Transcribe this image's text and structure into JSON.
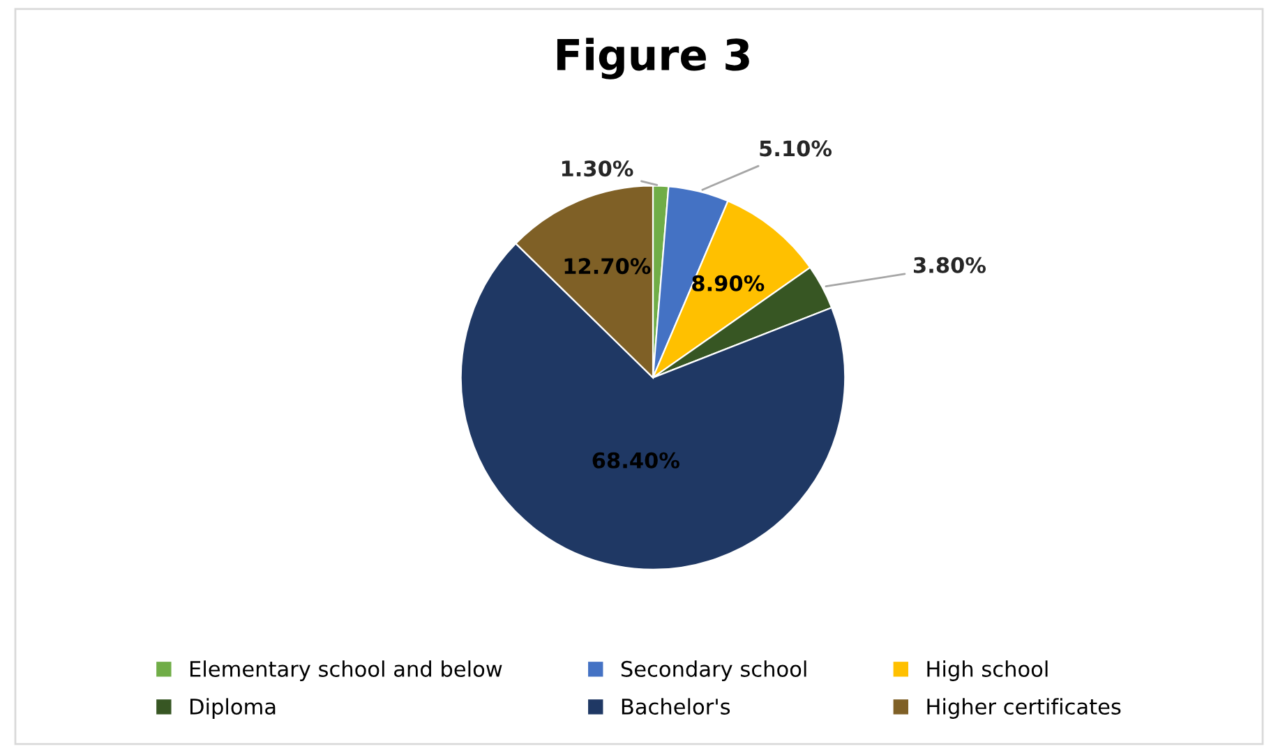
{
  "chart_data": {
    "type": "pie",
    "title": "Figure 3",
    "categories": [
      "Elementary school and below",
      "Secondary school",
      "High school",
      "Diploma",
      "Bachelor's",
      "Higher certificates"
    ],
    "values": [
      1.3,
      5.1,
      8.9,
      3.8,
      68.4,
      12.7
    ],
    "value_labels": [
      "1.30%",
      "5.10%",
      "8.90%",
      "3.80%",
      "68.40%",
      "12.70%"
    ],
    "colors": [
      "#70ad47",
      "#4472c4",
      "#ffc000",
      "#375623",
      "#1f3864",
      "#7f6026"
    ],
    "legend": "bottom"
  }
}
